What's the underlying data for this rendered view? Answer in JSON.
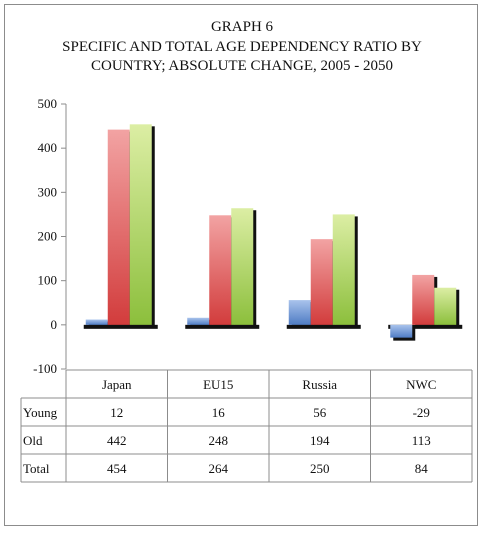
{
  "chart_data": {
    "type": "bar",
    "title": "GRAPH 6",
    "subtitle_lines": [
      "SPECIFIC AND TOTAL AGE DEPENDENCY RATIO BY",
      "COUNTRY; ABSOLUTE CHANGE, 2005 - 2050"
    ],
    "categories": [
      "Japan",
      "EU15",
      "Russia",
      "NWC"
    ],
    "series": [
      {
        "name": "Young",
        "values": [
          12,
          16,
          56,
          -29
        ],
        "color": "#6f97d6"
      },
      {
        "name": "Old",
        "values": [
          442,
          248,
          194,
          113
        ],
        "color": "#e06464"
      },
      {
        "name": "Total",
        "values": [
          454,
          264,
          250,
          84
        ],
        "color": "#a8cc5c"
      }
    ],
    "ylim": [
      -100,
      500
    ],
    "yticks": [
      "-100",
      "0",
      "100",
      "200",
      "300",
      "400",
      "500"
    ],
    "grid": false,
    "legend": "data table below chart",
    "data_table": {
      "rows": [
        {
          "label": "Young",
          "cells": [
            "12",
            "16",
            "56",
            "-29"
          ]
        },
        {
          "label": "Old",
          "cells": [
            "442",
            "248",
            "194",
            "113"
          ]
        },
        {
          "label": "Total",
          "cells": [
            "454",
            "264",
            "250",
            "84"
          ]
        }
      ]
    }
  }
}
